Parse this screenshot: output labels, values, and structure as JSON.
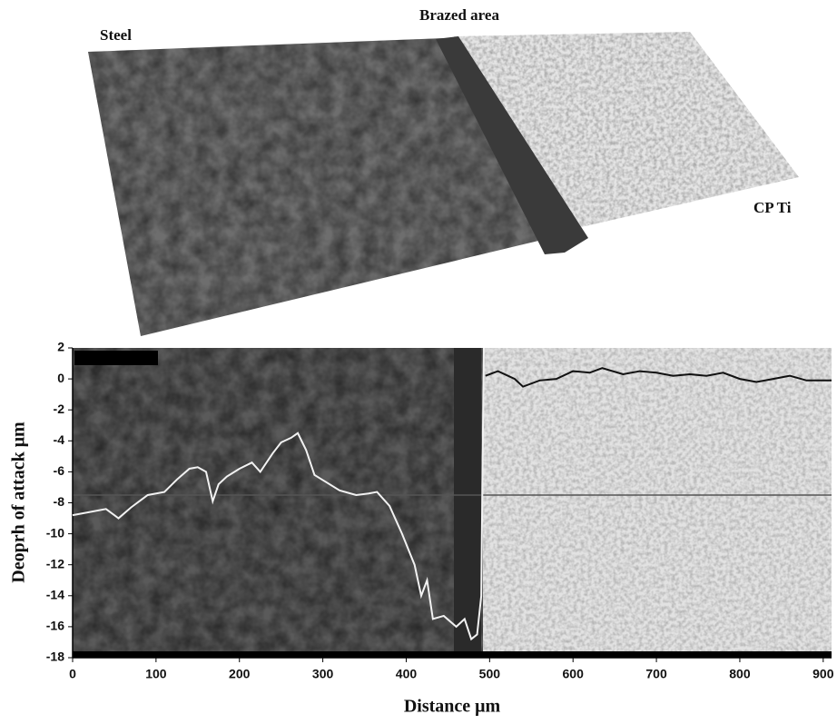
{
  "image_labels": {
    "steel": "Steel",
    "brazed": "Brazed area",
    "ti": "CP Ti"
  },
  "chart_data": {
    "type": "line",
    "x_label": "Distance  μm",
    "y_label": "Deoprh of attack  μm",
    "xlim": [
      0,
      910
    ],
    "ylim": [
      -18,
      2
    ],
    "xticks": [
      0,
      100,
      200,
      300,
      400,
      500,
      600,
      700,
      800,
      900
    ],
    "yticks": [
      -18,
      -16,
      -14,
      -12,
      -10,
      -8,
      -6,
      -4,
      -2,
      0,
      2
    ],
    "reference_line": -7.5,
    "series": [
      {
        "color": "#f2f2f2",
        "x": [
          0,
          20,
          40,
          55,
          70,
          90,
          110,
          125,
          140,
          150,
          160,
          168,
          175,
          185,
          200,
          215,
          225,
          240,
          250,
          262,
          270,
          280,
          290,
          305,
          320,
          340,
          355,
          365,
          380,
          395,
          410,
          418,
          425,
          432,
          445,
          460,
          470,
          478,
          485,
          490,
          493
        ],
        "values": [
          -8.8,
          -8.6,
          -8.4,
          -9.0,
          -8.3,
          -7.5,
          -7.3,
          -6.5,
          -5.8,
          -5.7,
          -6.0,
          -7.9,
          -6.8,
          -6.3,
          -5.8,
          -5.4,
          -6.0,
          -4.8,
          -4.1,
          -3.8,
          -3.5,
          -4.6,
          -6.2,
          -6.7,
          -7.2,
          -7.5,
          -7.4,
          -7.3,
          -8.2,
          -10,
          -12,
          -14,
          -13,
          -15.5,
          -15.3,
          -16,
          -15.5,
          -16.8,
          -16.5,
          -14,
          2
        ]
      },
      {
        "color": "#111111",
        "x": [
          495,
          510,
          530,
          540,
          560,
          580,
          600,
          620,
          635,
          660,
          680,
          700,
          720,
          740,
          760,
          780,
          800,
          820,
          840,
          860,
          880,
          910
        ],
        "values": [
          0.2,
          0.5,
          0,
          -0.5,
          -0.1,
          0,
          0.5,
          0.4,
          0.7,
          0.3,
          0.5,
          0.4,
          0.2,
          0.3,
          0.2,
          0.4,
          0,
          -0.2,
          0,
          0.2,
          -0.1,
          -0.1
        ]
      }
    ]
  }
}
